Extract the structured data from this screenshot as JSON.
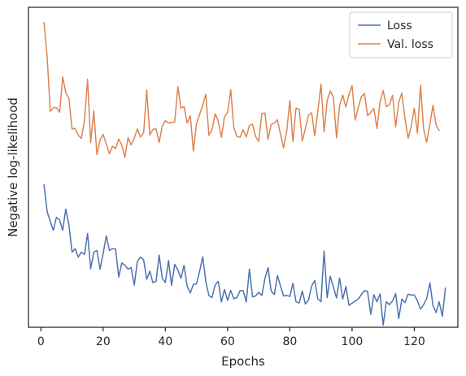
{
  "chart_data": {
    "type": "line",
    "xlabel": "Epochs",
    "ylabel": "Negative log-likelihood",
    "xlim": [
      -4,
      134
    ],
    "ylim": [
      0.0,
      1.0
    ],
    "x_ticks": [
      0,
      20,
      40,
      60,
      80,
      100,
      120
    ],
    "y_ticks_shown": false,
    "grid": false,
    "legend_position": "top-right",
    "series": [
      {
        "name": "Loss",
        "color": "#4c72b0",
        "values": [
          0.444,
          0.352,
          0.319,
          0.288,
          0.333,
          0.323,
          0.288,
          0.361,
          0.307,
          0.213,
          0.225,
          0.196,
          0.213,
          0.205,
          0.277,
          0.156,
          0.213,
          0.219,
          0.155,
          0.208,
          0.269,
          0.219,
          0.225,
          0.224,
          0.128,
          0.176,
          0.168,
          0.155,
          0.16,
          0.1,
          0.181,
          0.196,
          0.187,
          0.12,
          0.148,
          0.109,
          0.113,
          0.203,
          0.124,
          0.109,
          0.184,
          0.099,
          0.171,
          0.152,
          0.123,
          0.168,
          0.096,
          0.073,
          0.103,
          0.104,
          0.147,
          0.197,
          0.112,
          0.064,
          0.057,
          0.101,
          0.113,
          0.042,
          0.085,
          0.048,
          0.082,
          0.053,
          0.057,
          0.081,
          0.081,
          0.042,
          0.155,
          0.06,
          0.063,
          0.075,
          0.065,
          0.123,
          0.16,
          0.08,
          0.068,
          0.133,
          0.097,
          0.063,
          0.065,
          0.061,
          0.106,
          0.043,
          0.039,
          0.08,
          0.035,
          0.049,
          0.097,
          0.116,
          0.053,
          0.043,
          0.217,
          0.057,
          0.13,
          0.093,
          0.056,
          0.124,
          0.052,
          0.095,
          0.031,
          0.038,
          0.045,
          0.052,
          0.068,
          0.081,
          0.078,
          0.0,
          0.067,
          0.043,
          0.07,
          -0.037,
          0.043,
          0.033,
          0.046,
          0.071,
          -0.015,
          0.052,
          0.04,
          0.069,
          0.066,
          0.066,
          0.046,
          0.018,
          0.033,
          0.054,
          0.108,
          0.03,
          0.006,
          0.043,
          -0.007,
          0.09
        ]
      },
      {
        "name": "Val. loss",
        "color": "#dd8452",
        "values": [
          1.001,
          0.882,
          0.696,
          0.708,
          0.709,
          0.693,
          0.814,
          0.76,
          0.741,
          0.635,
          0.638,
          0.614,
          0.603,
          0.665,
          0.806,
          0.589,
          0.698,
          0.548,
          0.598,
          0.617,
          0.584,
          0.551,
          0.576,
          0.568,
          0.601,
          0.58,
          0.538,
          0.606,
          0.581,
          0.604,
          0.636,
          0.608,
          0.622,
          0.769,
          0.615,
          0.634,
          0.636,
          0.589,
          0.645,
          0.664,
          0.656,
          0.658,
          0.66,
          0.781,
          0.707,
          0.713,
          0.656,
          0.681,
          0.56,
          0.654,
          0.685,
          0.717,
          0.755,
          0.614,
          0.633,
          0.688,
          0.662,
          0.606,
          0.677,
          0.693,
          0.771,
          0.64,
          0.61,
          0.607,
          0.633,
          0.608,
          0.648,
          0.652,
          0.61,
          0.593,
          0.689,
          0.69,
          0.6,
          0.651,
          0.656,
          0.667,
          0.618,
          0.571,
          0.629,
          0.733,
          0.592,
          0.707,
          0.703,
          0.595,
          0.637,
          0.683,
          0.691,
          0.613,
          0.696,
          0.79,
          0.626,
          0.733,
          0.766,
          0.744,
          0.605,
          0.716,
          0.752,
          0.711,
          0.754,
          0.784,
          0.666,
          0.71,
          0.747,
          0.757,
          0.681,
          0.692,
          0.706,
          0.637,
          0.728,
          0.768,
          0.712,
          0.719,
          0.751,
          0.643,
          0.727,
          0.759,
          0.671,
          0.604,
          0.644,
          0.707,
          0.621,
          0.786,
          0.635,
          0.59,
          0.652,
          0.717,
          0.65,
          0.631
        ]
      }
    ]
  }
}
